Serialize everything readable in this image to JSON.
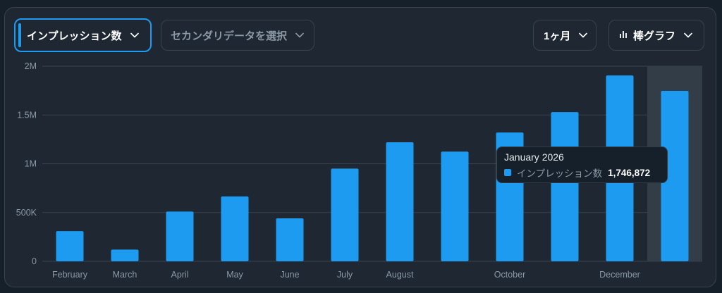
{
  "controls": {
    "primary_metric": "インプレッション数",
    "secondary_metric": "セカンダリデータを選択",
    "period": "1ヶ月",
    "chart_type": "棒グラフ"
  },
  "colors": {
    "bar": "#1d9bf0",
    "grid": "#38444d",
    "hover_band": "#333d47",
    "tick": "#8b98a5"
  },
  "chart_data": {
    "type": "bar",
    "x_tick_labels": [
      "February",
      "March",
      "April",
      "May",
      "June",
      "July",
      "August",
      "",
      "October",
      "",
      "December",
      ""
    ],
    "series": [
      {
        "name": "インプレッション数",
        "values": [
          310000,
          120000,
          510000,
          665000,
          440000,
          950000,
          1220000,
          1125000,
          1320000,
          1530000,
          1905000,
          1746872
        ]
      }
    ],
    "y_ticks": [
      0,
      500000,
      1000000,
      1500000,
      2000000
    ],
    "y_tick_labels": [
      "0",
      "500K",
      "1M",
      "1.5M",
      "2M"
    ],
    "ylim": [
      0,
      2000000
    ],
    "grid": true,
    "highlighted_index": 11
  },
  "tooltip": {
    "title": "January 2026",
    "series_name": "インプレッション数",
    "value": "1,746,872"
  }
}
